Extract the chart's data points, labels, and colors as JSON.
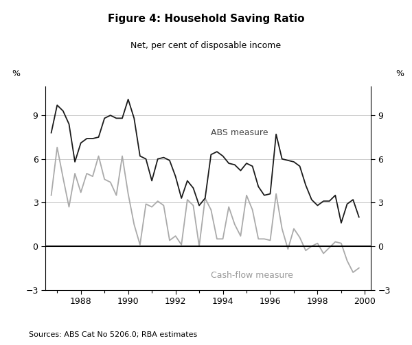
{
  "title": "Figure 4: Household Saving Ratio",
  "subtitle": "Net, per cent of disposable income",
  "source": "Sources: ABS Cat No 5206.0; RBA estimates",
  "ylabel_left": "%",
  "ylabel_right": "%",
  "xlim": [
    1986.5,
    2000.25
  ],
  "ylim": [
    -3,
    11
  ],
  "yticks": [
    -3,
    0,
    3,
    6,
    9
  ],
  "grid_yticks": [
    0,
    3,
    6,
    9
  ],
  "xticks": [
    1988,
    1990,
    1992,
    1994,
    1996,
    1998,
    2000
  ],
  "abs_label": "ABS measure",
  "cashflow_label": "Cash-flow measure",
  "abs_color": "#1a1a1a",
  "cashflow_color": "#aaaaaa",
  "background_color": "#ffffff",
  "abs_x": [
    1986.75,
    1987.0,
    1987.25,
    1987.5,
    1987.75,
    1988.0,
    1988.25,
    1988.5,
    1988.75,
    1989.0,
    1989.25,
    1989.5,
    1989.75,
    1990.0,
    1990.25,
    1990.5,
    1990.75,
    1991.0,
    1991.25,
    1991.5,
    1991.75,
    1992.0,
    1992.25,
    1992.5,
    1992.75,
    1993.0,
    1993.25,
    1993.5,
    1993.75,
    1994.0,
    1994.25,
    1994.5,
    1994.75,
    1995.0,
    1995.25,
    1995.5,
    1995.75,
    1996.0,
    1996.25,
    1996.5,
    1996.75,
    1997.0,
    1997.25,
    1997.5,
    1997.75,
    1998.0,
    1998.25,
    1998.5,
    1998.75,
    1999.0,
    1999.25,
    1999.5,
    1999.75
  ],
  "abs_y": [
    7.8,
    9.7,
    9.3,
    8.4,
    5.8,
    7.1,
    7.4,
    7.4,
    7.5,
    8.8,
    9.0,
    8.8,
    8.8,
    10.1,
    8.8,
    6.2,
    6.0,
    4.5,
    6.0,
    6.1,
    5.9,
    4.8,
    3.3,
    4.5,
    4.0,
    2.8,
    3.3,
    6.3,
    6.5,
    6.2,
    5.7,
    5.6,
    5.2,
    5.7,
    5.5,
    4.1,
    3.5,
    3.6,
    7.7,
    6.0,
    5.9,
    5.8,
    5.5,
    4.2,
    3.2,
    2.8,
    3.1,
    3.1,
    3.5,
    1.6,
    2.9,
    3.2,
    2.0
  ],
  "cf_x": [
    1986.75,
    1987.0,
    1987.25,
    1987.5,
    1987.75,
    1988.0,
    1988.25,
    1988.5,
    1988.75,
    1989.0,
    1989.25,
    1989.5,
    1989.75,
    1990.0,
    1990.25,
    1990.5,
    1990.75,
    1991.0,
    1991.25,
    1991.5,
    1991.75,
    1992.0,
    1992.25,
    1992.5,
    1992.75,
    1993.0,
    1993.25,
    1993.5,
    1993.75,
    1994.0,
    1994.25,
    1994.5,
    1994.75,
    1995.0,
    1995.25,
    1995.5,
    1995.75,
    1996.0,
    1996.25,
    1996.5,
    1996.75,
    1997.0,
    1997.25,
    1997.5,
    1997.75,
    1998.0,
    1998.25,
    1998.5,
    1998.75,
    1999.0,
    1999.25,
    1999.5,
    1999.75
  ],
  "cf_y": [
    3.5,
    6.8,
    4.7,
    2.7,
    5.0,
    3.7,
    5.0,
    4.8,
    6.2,
    4.6,
    4.4,
    3.5,
    6.2,
    3.6,
    1.5,
    0.1,
    2.9,
    2.7,
    3.1,
    2.8,
    0.4,
    0.7,
    0.1,
    3.2,
    2.8,
    0.0,
    3.3,
    2.5,
    0.5,
    0.5,
    2.7,
    1.5,
    0.7,
    3.5,
    2.5,
    0.5,
    0.5,
    0.4,
    3.6,
    1.2,
    -0.2,
    1.2,
    0.6,
    -0.3,
    0.0,
    0.2,
    -0.5,
    -0.1,
    0.3,
    0.2,
    -1.0,
    -1.8,
    -1.5
  ]
}
